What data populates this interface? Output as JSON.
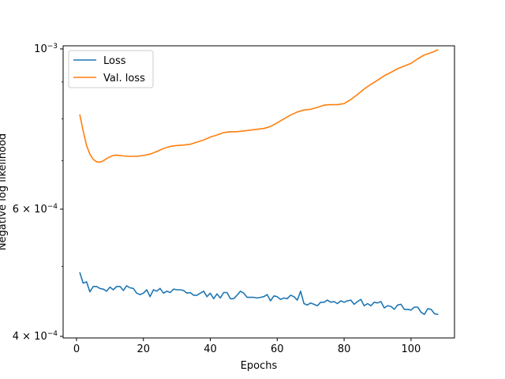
{
  "chart_data": {
    "type": "line",
    "title": "",
    "xlabel": "Epochs",
    "ylabel": "Negative log likelihood",
    "yscale": "log",
    "xlim": [
      -4,
      113
    ],
    "ylim": [
      0.000398,
      0.00101
    ],
    "grid": false,
    "legend_position": "top-left",
    "x_ticks": [
      0,
      20,
      40,
      60,
      80,
      100
    ],
    "y_ticks": [
      {
        "value": 0.001,
        "base": "10",
        "exp": "−3",
        "mant": ""
      },
      {
        "value": 0.0006,
        "base": "10",
        "exp": "−4",
        "mant": "6"
      },
      {
        "value": 0.0004,
        "base": "10",
        "exp": "−4",
        "mant": "4"
      }
    ],
    "series": [
      {
        "name": "Loss",
        "color": "#1f77b4",
        "x": [
          1,
          2,
          3,
          4,
          5,
          6,
          7,
          8,
          9,
          10,
          11,
          12,
          13,
          14,
          15,
          16,
          17,
          18,
          19,
          20,
          21,
          22,
          23,
          24,
          25,
          26,
          27,
          28,
          29,
          30,
          31,
          32,
          33,
          34,
          35,
          36,
          37,
          38,
          39,
          40,
          41,
          42,
          43,
          44,
          45,
          46,
          47,
          48,
          49,
          50,
          51,
          52,
          53,
          54,
          55,
          56,
          57,
          58,
          59,
          60,
          61,
          62,
          63,
          64,
          65,
          66,
          67,
          68,
          69,
          70,
          71,
          72,
          73,
          74,
          75,
          76,
          77,
          78,
          79,
          80,
          81,
          82,
          83,
          84,
          85,
          86,
          87,
          88,
          89,
          90,
          91,
          92,
          93,
          94,
          95,
          96,
          97,
          98,
          99,
          100,
          101,
          102,
          103,
          104,
          105,
          106,
          107,
          108
        ],
        "values": [
          0.00049,
          0.000474,
          0.000476,
          0.000461,
          0.000469,
          0.000469,
          0.000466,
          0.000465,
          0.000462,
          0.000468,
          0.000464,
          0.000469,
          0.000469,
          0.000463,
          0.00047,
          0.000467,
          0.000466,
          0.000459,
          0.000457,
          0.000459,
          0.000464,
          0.000454,
          0.000464,
          0.000462,
          0.000466,
          0.000459,
          0.000462,
          0.00046,
          0.000465,
          0.000464,
          0.000464,
          0.000463,
          0.000459,
          0.00046,
          0.000456,
          0.000456,
          0.000459,
          0.000462,
          0.000454,
          0.000459,
          0.000451,
          0.000458,
          0.000452,
          0.00046,
          0.00046,
          0.000451,
          0.000451,
          0.000456,
          0.000462,
          0.000459,
          0.000453,
          0.000453,
          0.000453,
          0.000452,
          0.000453,
          0.000454,
          0.000457,
          0.000448,
          0.000455,
          0.000454,
          0.00045,
          0.000452,
          0.000451,
          0.000456,
          0.000454,
          0.000449,
          0.000462,
          0.000444,
          0.000442,
          0.000445,
          0.000443,
          0.000441,
          0.000446,
          0.000446,
          0.000449,
          0.000446,
          0.000447,
          0.000444,
          0.000448,
          0.000446,
          0.000448,
          0.000449,
          0.000443,
          0.000447,
          0.00045,
          0.000441,
          0.000444,
          0.000441,
          0.000446,
          0.000445,
          0.000447,
          0.000438,
          0.000441,
          0.00044,
          0.000436,
          0.000442,
          0.000443,
          0.000436,
          0.000436,
          0.000435,
          0.000439,
          0.000439,
          0.000432,
          0.000429,
          0.000437,
          0.000436,
          0.00043,
          0.000429
        ]
      },
      {
        "name": "Val. loss",
        "color": "#ff7f0e",
        "x": [
          1,
          2,
          3,
          4,
          5,
          6,
          7,
          8,
          9,
          10,
          11,
          12,
          13,
          14,
          16,
          18,
          20,
          22,
          24,
          26,
          28,
          30,
          32,
          34,
          36,
          38,
          40,
          42,
          44,
          46,
          48,
          50,
          52,
          54,
          56,
          58,
          60,
          62,
          64,
          66,
          68,
          70,
          72,
          74,
          76,
          78,
          80,
          82,
          84,
          86,
          88,
          90,
          92,
          94,
          96,
          98,
          100,
          102,
          104,
          106,
          108
        ],
        "values": [
          0.00081,
          0.00077,
          0.000735,
          0.000715,
          0.000703,
          0.000698,
          0.000697,
          0.0007,
          0.000705,
          0.000709,
          0.000712,
          0.000713,
          0.000712,
          0.000711,
          0.00071,
          0.00071,
          0.000712,
          0.000715,
          0.000721,
          0.000728,
          0.000733,
          0.000735,
          0.000736,
          0.000738,
          0.000743,
          0.000748,
          0.000755,
          0.00076,
          0.000766,
          0.000768,
          0.000768,
          0.00077,
          0.000772,
          0.000774,
          0.000776,
          0.000781,
          0.00079,
          0.0008,
          0.00081,
          0.000818,
          0.000823,
          0.000825,
          0.00083,
          0.000836,
          0.000837,
          0.000837,
          0.00084,
          0.000851,
          0.000865,
          0.00088,
          0.000893,
          0.000905,
          0.000918,
          0.000928,
          0.000939,
          0.000947,
          0.000955,
          0.000969,
          0.000981,
          0.000988,
          0.000997
        ]
      }
    ]
  }
}
